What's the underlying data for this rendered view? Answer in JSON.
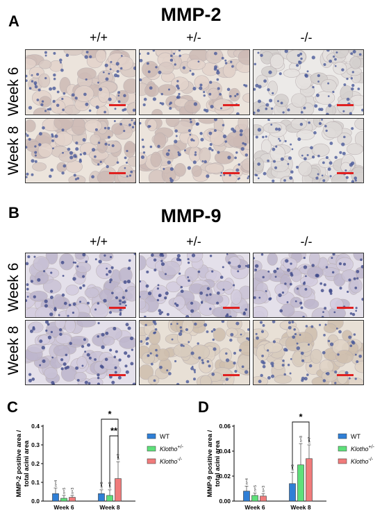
{
  "panelA": {
    "letter": "A",
    "title": "MMP-2",
    "genotypes": [
      "+/+",
      "+/-",
      "-/-"
    ],
    "rows": [
      "Week 6",
      "Week 8"
    ]
  },
  "panelB": {
    "letter": "B",
    "title": "MMP-9",
    "genotypes": [
      "+/+",
      "+/-",
      "-/-"
    ],
    "rows": [
      "Week 6",
      "Week 8"
    ]
  },
  "colors": {
    "wt": "#2f7fd6",
    "het": "#5ee07a",
    "ko": "#f07b7b",
    "scalebar": "#e02020"
  },
  "chart_data": [
    {
      "type": "bar",
      "panel_letter": "C",
      "ylabel": "MMP-2 positive area / total acini area",
      "ylabel_line1": "MMP-2 positive area /",
      "ylabel_line2": "total acini area",
      "ylim": [
        0,
        0.4
      ],
      "yticks": [
        "0.0",
        "0.1",
        "0.2",
        "0.3",
        "0.4"
      ],
      "ytick_values": [
        0,
        0.1,
        0.2,
        0.3,
        0.4
      ],
      "categories": [
        "Week 6",
        "Week 8"
      ],
      "legend_position": "right",
      "series": [
        {
          "name": "WT",
          "values": [
            0.04,
            0.04
          ],
          "errors": [
            0.03,
            0.02
          ],
          "n_labels": [
            "n=4",
            "n=8"
          ]
        },
        {
          "name": "Klotho+/-",
          "values": [
            0.015,
            0.03
          ],
          "errors": [
            0.015,
            0.03
          ],
          "n_labels": [
            "n=5",
            "n=8"
          ]
        },
        {
          "name": "Klotho-/-",
          "values": [
            0.02,
            0.12
          ],
          "errors": [
            0.01,
            0.09
          ],
          "n_labels": [
            "n=3",
            "n=7"
          ]
        }
      ],
      "significance": [
        {
          "label": "*",
          "from_series": 0,
          "to_series": 2,
          "category": 1
        },
        {
          "label": "**",
          "from_series": 1,
          "to_series": 2,
          "category": 1
        }
      ]
    },
    {
      "type": "bar",
      "panel_letter": "D",
      "ylabel": "MMP-9 positive area / total acini area",
      "ylabel_line1": "MMP-9 positive area /",
      "ylabel_line2": "total acini area",
      "ylim": [
        0,
        0.06
      ],
      "yticks": [
        "0.00",
        "0.02",
        "0.04",
        "0.06"
      ],
      "ytick_values": [
        0,
        0.02,
        0.04,
        0.06
      ],
      "categories": [
        "Week 6",
        "Week 8"
      ],
      "legend_position": "right",
      "series": [
        {
          "name": "WT",
          "values": [
            0.008,
            0.014
          ],
          "errors": [
            0.004,
            0.009
          ],
          "n_labels": [
            "n=4",
            "n=8"
          ]
        },
        {
          "name": "Klotho+/-",
          "values": [
            0.0045,
            0.029
          ],
          "errors": [
            0.002,
            0.017
          ],
          "n_labels": [
            "n=5",
            "n=8"
          ]
        },
        {
          "name": "Klotho-/-",
          "values": [
            0.004,
            0.034
          ],
          "errors": [
            0.002,
            0.011
          ],
          "n_labels": [
            "n=3",
            "n=7"
          ]
        }
      ],
      "significance": [
        {
          "label": "*",
          "from_series": 0,
          "to_series": 2,
          "category": 1
        }
      ]
    }
  ],
  "legend": [
    {
      "base": "WT",
      "sup": ""
    },
    {
      "base": "Klotho",
      "sup": "+/-"
    },
    {
      "base": "Klotho",
      "sup": "-/-"
    }
  ]
}
